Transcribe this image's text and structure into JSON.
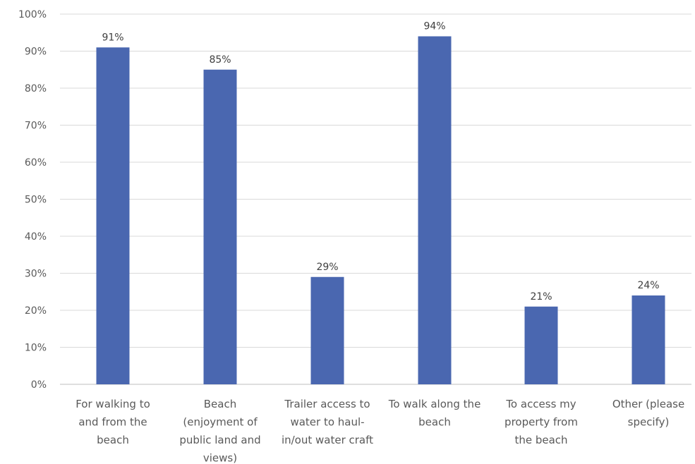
{
  "chart_data": {
    "type": "bar",
    "categories": [
      [
        "For walking to",
        "and from the",
        "beach"
      ],
      [
        "Beach",
        "(enjoyment of",
        "public land and",
        "views)"
      ],
      [
        "Trailer access to",
        "water to haul-",
        "in/out water craft"
      ],
      [
        "To walk along the",
        "beach"
      ],
      [
        "To access my",
        "property from",
        "the beach"
      ],
      [
        "Other (please",
        "specify)"
      ]
    ],
    "values": [
      91,
      85,
      29,
      94,
      21,
      24
    ],
    "data_labels": [
      "91%",
      "85%",
      "29%",
      "94%",
      "21%",
      "24%"
    ],
    "ylim": [
      0,
      100
    ],
    "yticks": [
      0,
      10,
      20,
      30,
      40,
      50,
      60,
      70,
      80,
      90,
      100
    ],
    "ytick_labels": [
      "0%",
      "10%",
      "20%",
      "30%",
      "40%",
      "50%",
      "60%",
      "70%",
      "80%",
      "90%",
      "100%"
    ],
    "title": "",
    "xlabel": "",
    "ylabel": "",
    "grid": true,
    "bar_color": "#4a67b0"
  }
}
